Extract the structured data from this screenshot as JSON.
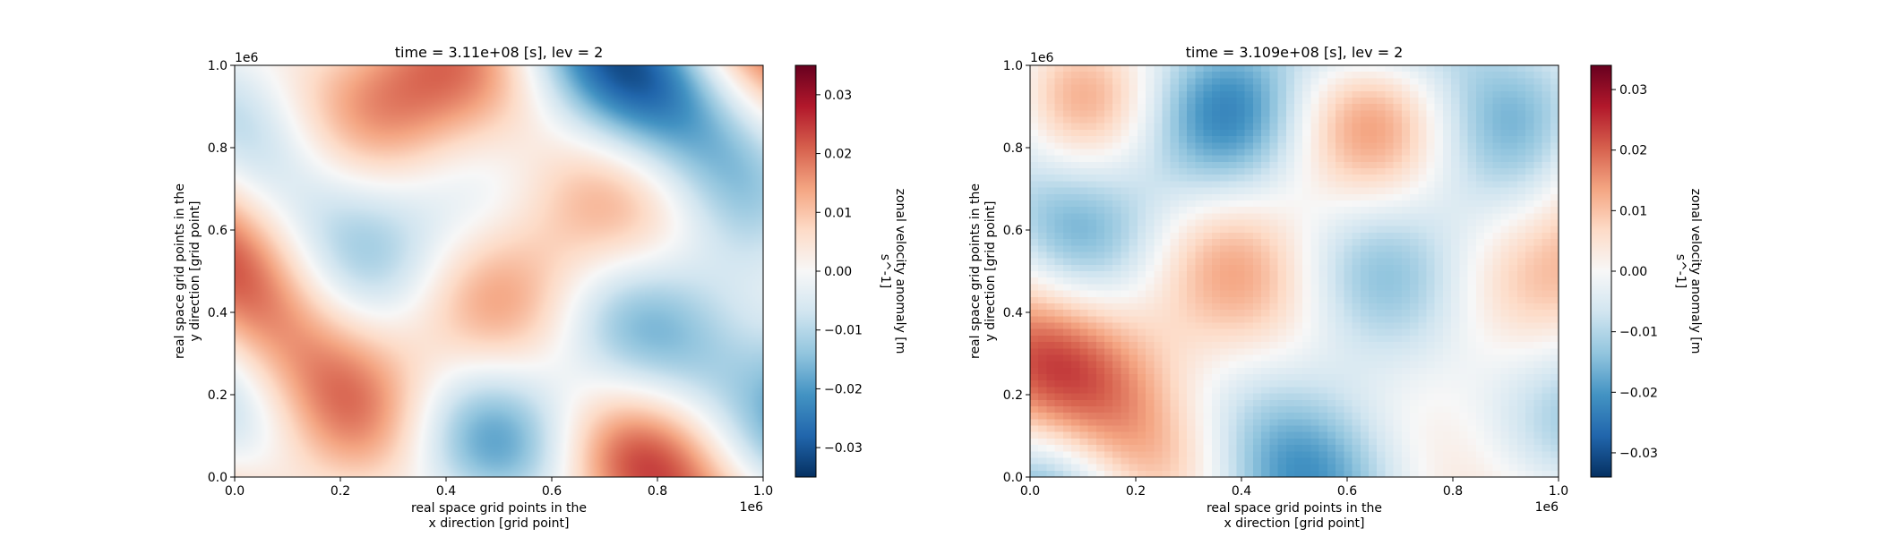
{
  "chart_data": [
    {
      "type": "heatmap",
      "title": "time = 3.11e+08 [s], lev = 2",
      "xlabel_line1": "real space grid points in the",
      "xlabel_line2": "x direction [grid point]",
      "ylabel_line1": "real space grid points in the",
      "ylabel_line2": "y direction [grid point]",
      "x_offset_text": "1e6",
      "y_offset_text": "1e6",
      "xlim": [
        0,
        1000000
      ],
      "ylim": [
        0,
        1000000
      ],
      "x_ticks": [
        "0.0",
        "0.2",
        "0.4",
        "0.6",
        "0.8",
        "1.0"
      ],
      "y_ticks": [
        "0.0",
        "0.2",
        "0.4",
        "0.6",
        "0.8",
        "1.0"
      ],
      "colorbar_label_line1": "zonal velocity anomaly [m",
      "colorbar_label_line2": "s^-1]",
      "colorbar_range": [
        -0.035,
        0.035
      ],
      "colorbar_ticks": [
        "0.03",
        "0.02",
        "0.01",
        "0.00",
        "−0.01",
        "−0.02",
        "−0.03"
      ],
      "colormap": "RdBu_r",
      "grid": false,
      "field_style": "smooth"
    },
    {
      "type": "heatmap",
      "title": "time = 3.109e+08 [s], lev = 2",
      "xlabel_line1": "real space grid points in the",
      "xlabel_line2": "x direction [grid point]",
      "ylabel_line1": "real space grid points in the",
      "ylabel_line2": "y direction [grid point]",
      "x_offset_text": "1e6",
      "y_offset_text": "1e6",
      "xlim": [
        0,
        1000000
      ],
      "ylim": [
        0,
        1000000
      ],
      "x_ticks": [
        "0.0",
        "0.2",
        "0.4",
        "0.6",
        "0.8",
        "1.0"
      ],
      "y_ticks": [
        "0.0",
        "0.2",
        "0.4",
        "0.6",
        "0.8",
        "1.0"
      ],
      "colorbar_label_line1": "zonal velocity anomaly [m",
      "colorbar_label_line2": "s^-1]",
      "colorbar_range": [
        -0.034,
        0.034
      ],
      "colorbar_ticks": [
        "0.03",
        "0.02",
        "0.01",
        "0.00",
        "−0.01",
        "−0.02",
        "−0.03"
      ],
      "colormap": "RdBu_r",
      "grid": false,
      "field_style": "pixelated"
    }
  ]
}
